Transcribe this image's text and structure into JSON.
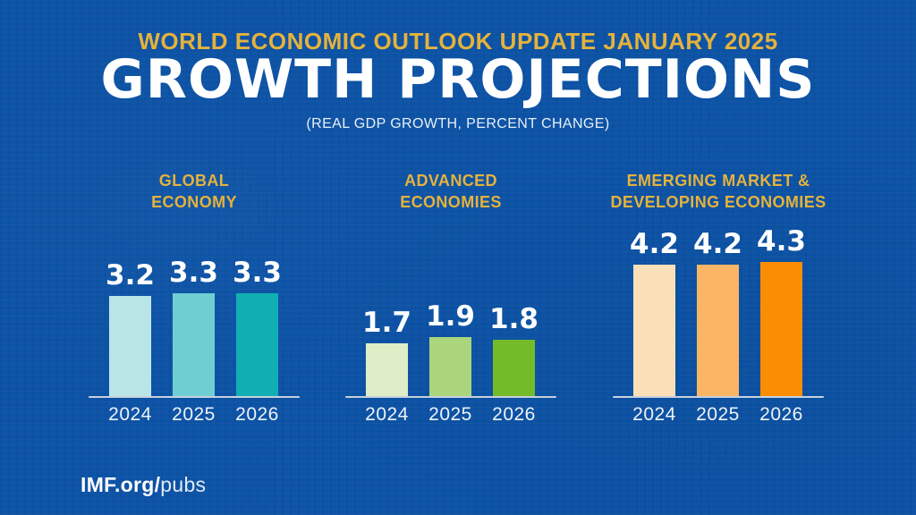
{
  "header": {
    "eyebrow": "WORLD ECONOMIC OUTLOOK UPDATE JANUARY 2025",
    "title": "GROWTH PROJECTIONS",
    "subtitle": "(REAL GDP GROWTH, PERCENT CHANGE)"
  },
  "footer": {
    "brand_bold": "IMF.org/",
    "brand_light": "pubs"
  },
  "colors": {
    "background": "#0D53A6",
    "gold": "#E5B23C",
    "white": "#FFFFFF",
    "axis_line": "#C6D1DE"
  },
  "chart_data": [
    {
      "type": "bar",
      "title": "GLOBAL ECONOMY",
      "title_display": "GLOBAL\nECONOMY",
      "categories": [
        "2024",
        "2025",
        "2026"
      ],
      "values": [
        3.2,
        3.3,
        3.3
      ],
      "bar_colors": [
        "#BAE5E6",
        "#6FCED1",
        "#10AFB3"
      ],
      "ylim": [
        0,
        4.5
      ],
      "grid": false,
      "legend": "none",
      "value_labels": "above-bars"
    },
    {
      "type": "bar",
      "title": "ADVANCED ECONOMIES",
      "title_display": "ADVANCED\nECONOMIES",
      "categories": [
        "2024",
        "2025",
        "2026"
      ],
      "values": [
        1.7,
        1.9,
        1.8
      ],
      "bar_colors": [
        "#DFEEC6",
        "#AAD57C",
        "#74BB2A"
      ],
      "ylim": [
        0,
        4.5
      ],
      "grid": false,
      "legend": "none",
      "value_labels": "above-bars"
    },
    {
      "type": "bar",
      "title": "EMERGING MARKET & DEVELOPING ECONOMIES",
      "title_display": "EMERGING MARKET &\nDEVELOPING ECONOMIES",
      "categories": [
        "2024",
        "2025",
        "2026"
      ],
      "values": [
        4.2,
        4.2,
        4.3
      ],
      "bar_colors": [
        "#FBDFB9",
        "#FCB465",
        "#FB8D05"
      ],
      "ylim": [
        0,
        4.5
      ],
      "grid": false,
      "legend": "none",
      "value_labels": "above-bars"
    }
  ]
}
